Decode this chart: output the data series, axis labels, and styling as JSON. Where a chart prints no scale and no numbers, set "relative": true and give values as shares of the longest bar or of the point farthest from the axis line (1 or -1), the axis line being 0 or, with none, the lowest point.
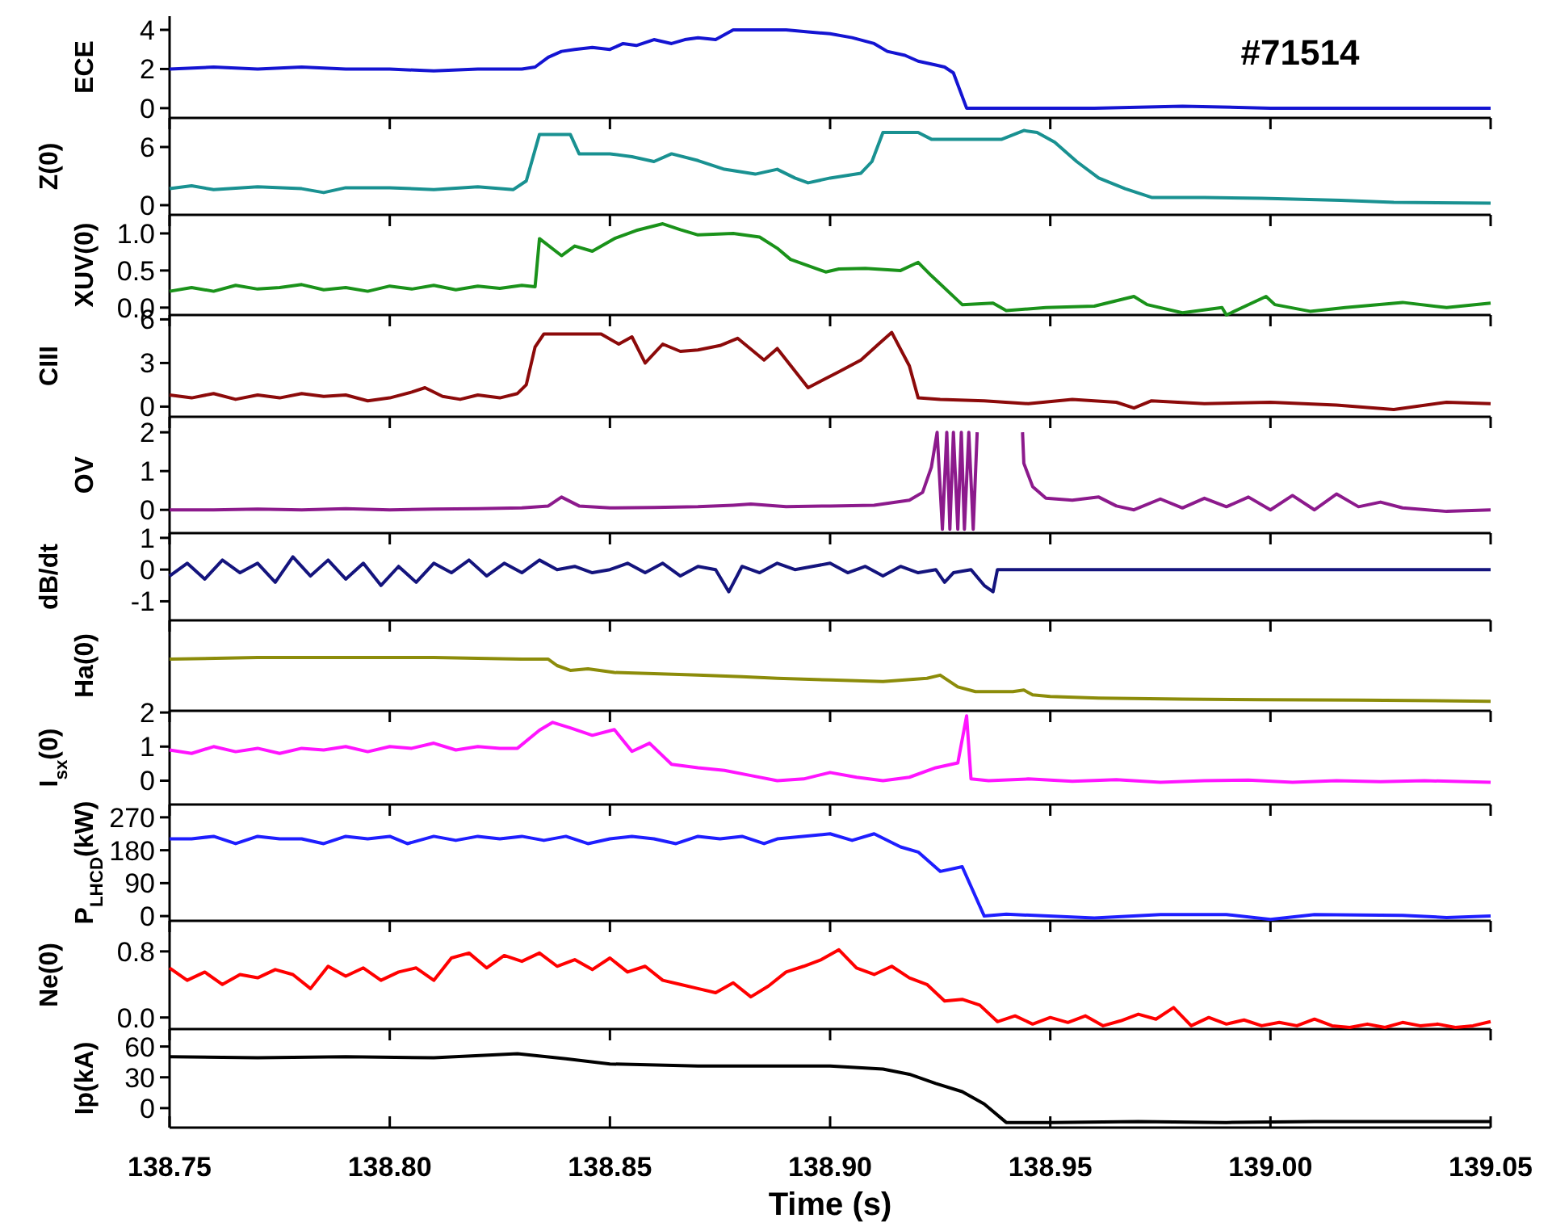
{
  "chart_data": [
    {
      "type": "line",
      "ylabel": "ECE",
      "color": "#1414d2",
      "annotations": [
        "#71514"
      ],
      "tick_labels": "y",
      "grid": false,
      "xlim": [
        138.75,
        139.05
      ],
      "xticks": [
        {
          "value": 138.75,
          "label": null
        },
        {
          "value": 138.8,
          "label": null
        },
        {
          "value": 138.85,
          "label": null
        },
        {
          "value": 138.9,
          "label": null
        },
        {
          "value": 138.95,
          "label": null
        },
        {
          "value": 139.0,
          "label": null
        },
        {
          "value": 139.05,
          "label": null
        }
      ],
      "ylim": [
        -0.5,
        4.7
      ],
      "yticks": [
        0,
        2,
        4
      ],
      "x": [
        138.75,
        138.76,
        138.77,
        138.78,
        138.79,
        138.8,
        138.81,
        138.82,
        138.83,
        138.833,
        138.836,
        138.839,
        138.842,
        138.846,
        138.85,
        138.853,
        138.856,
        138.86,
        138.864,
        138.867,
        138.87,
        138.874,
        138.878,
        138.885,
        138.89,
        138.895,
        138.9,
        138.905,
        138.91,
        138.913,
        138.917,
        138.92,
        138.924,
        138.926,
        138.928,
        138.931,
        138.94,
        138.96,
        138.98,
        139.0,
        139.02,
        139.05
      ],
      "values": [
        2.0,
        2.1,
        2.0,
        2.1,
        2.0,
        2.0,
        1.9,
        2.0,
        2.0,
        2.1,
        2.6,
        2.9,
        3.0,
        3.1,
        3.0,
        3.3,
        3.2,
        3.5,
        3.3,
        3.5,
        3.6,
        3.5,
        4.0,
        4.0,
        4.0,
        3.9,
        3.8,
        3.6,
        3.3,
        2.9,
        2.7,
        2.4,
        2.2,
        2.1,
        1.8,
        0.0,
        0.0,
        0.0,
        0.1,
        0.0,
        0.0,
        0.0
      ]
    },
    {
      "type": "line",
      "ylabel": "Z(0)",
      "color": "#199191",
      "tick_labels": "y",
      "grid": false,
      "xlim": [
        138.75,
        139.05
      ],
      "xticks": [
        {
          "value": 138.75,
          "label": null
        },
        {
          "value": 138.8,
          "label": null
        },
        {
          "value": 138.85,
          "label": null
        },
        {
          "value": 138.9,
          "label": null
        },
        {
          "value": 138.95,
          "label": null
        },
        {
          "value": 139.0,
          "label": null
        },
        {
          "value": 139.05,
          "label": null
        }
      ],
      "ylim": [
        -1,
        9
      ],
      "yticks": [
        0,
        6
      ],
      "x": [
        138.75,
        138.755,
        138.76,
        138.77,
        138.78,
        138.785,
        138.79,
        138.8,
        138.81,
        138.82,
        138.828,
        138.831,
        138.834,
        138.841,
        138.843,
        138.85,
        138.855,
        138.86,
        138.864,
        138.87,
        138.876,
        138.883,
        138.888,
        138.892,
        138.895,
        138.9,
        138.907,
        138.9095,
        138.912,
        138.92,
        138.923,
        138.939,
        138.944,
        138.947,
        138.951,
        138.956,
        138.961,
        138.967,
        138.973,
        138.985,
        138.998,
        139.016,
        139.028,
        139.05
      ],
      "values": [
        1.7,
        2.0,
        1.6,
        1.9,
        1.7,
        1.3,
        1.8,
        1.8,
        1.6,
        1.9,
        1.6,
        2.5,
        7.3,
        7.3,
        5.3,
        5.3,
        5.0,
        4.5,
        5.3,
        4.6,
        3.7,
        3.2,
        3.7,
        2.8,
        2.3,
        2.8,
        3.3,
        4.5,
        7.5,
        7.5,
        6.8,
        6.8,
        7.7,
        7.5,
        6.5,
        4.5,
        2.8,
        1.7,
        0.8,
        0.8,
        0.7,
        0.5,
        0.3,
        0.2
      ]
    },
    {
      "type": "line",
      "ylabel": "XUV(0)",
      "color": "#1a921a",
      "tick_labels": "y",
      "grid": false,
      "xlim": [
        138.75,
        139.05
      ],
      "xticks": [
        {
          "value": 138.75,
          "label": null
        },
        {
          "value": 138.8,
          "label": null
        },
        {
          "value": 138.85,
          "label": null
        },
        {
          "value": 138.9,
          "label": null
        },
        {
          "value": 138.95,
          "label": null
        },
        {
          "value": 139.0,
          "label": null
        },
        {
          "value": 139.05,
          "label": null
        }
      ],
      "ylim": [
        -0.1,
        1.25
      ],
      "yticks": [
        {
          "value": 0,
          "label": "0.0"
        },
        {
          "value": 0.5,
          "label": "0.5"
        },
        {
          "value": 1,
          "label": "1.0"
        }
      ],
      "x": [
        138.75,
        138.755,
        138.76,
        138.765,
        138.77,
        138.775,
        138.78,
        138.785,
        138.79,
        138.795,
        138.8,
        138.805,
        138.81,
        138.815,
        138.82,
        138.825,
        138.83,
        138.833,
        138.834,
        138.839,
        138.842,
        138.846,
        138.851,
        138.856,
        138.862,
        138.866,
        138.87,
        138.878,
        138.884,
        138.888,
        138.891,
        138.899,
        138.902,
        138.908,
        138.916,
        138.92,
        138.923,
        138.93,
        138.937,
        138.94,
        138.949,
        138.96,
        138.969,
        138.972,
        138.98,
        138.989,
        138.99,
        138.999,
        139.001,
        139.009,
        139.017,
        139.03,
        139.04,
        139.05
      ],
      "values": [
        0.22,
        0.27,
        0.22,
        0.3,
        0.25,
        0.27,
        0.31,
        0.24,
        0.27,
        0.22,
        0.29,
        0.25,
        0.3,
        0.24,
        0.29,
        0.26,
        0.3,
        0.28,
        0.93,
        0.7,
        0.83,
        0.76,
        0.93,
        1.04,
        1.13,
        1.05,
        0.98,
        1.0,
        0.95,
        0.8,
        0.65,
        0.48,
        0.52,
        0.53,
        0.5,
        0.61,
        0.43,
        0.04,
        0.06,
        -0.04,
        0.0,
        0.02,
        0.15,
        0.04,
        -0.07,
        0.0,
        -0.1,
        0.15,
        0.04,
        -0.05,
        0.0,
        0.07,
        0.0,
        0.06
      ]
    },
    {
      "type": "line",
      "ylabel": "CIII",
      "color": "#8c0a0a",
      "tick_labels": "y",
      "grid": false,
      "xlim": [
        138.75,
        139.05
      ],
      "xticks": [
        {
          "value": 138.75,
          "label": null
        },
        {
          "value": 138.8,
          "label": null
        },
        {
          "value": 138.85,
          "label": null
        },
        {
          "value": 138.9,
          "label": null
        },
        {
          "value": 138.95,
          "label": null
        },
        {
          "value": 139.0,
          "label": null
        },
        {
          "value": 139.05,
          "label": null
        }
      ],
      "ylim": [
        -0.7,
        6.3
      ],
      "yticks": [
        0,
        3,
        6
      ],
      "x": [
        138.75,
        138.755,
        138.76,
        138.765,
        138.77,
        138.775,
        138.78,
        138.785,
        138.79,
        138.795,
        138.8,
        138.805,
        138.808,
        138.812,
        138.816,
        138.82,
        138.825,
        138.829,
        138.831,
        138.833,
        138.835,
        138.848,
        138.852,
        138.855,
        138.858,
        138.862,
        138.866,
        138.87,
        138.875,
        138.879,
        138.885,
        138.888,
        138.895,
        138.902,
        138.907,
        138.911,
        138.914,
        138.918,
        138.92,
        138.925,
        138.935,
        138.945,
        138.955,
        138.965,
        138.969,
        138.973,
        138.985,
        139.0,
        139.015,
        139.028,
        139.04,
        139.05
      ],
      "values": [
        0.8,
        0.6,
        0.9,
        0.5,
        0.8,
        0.6,
        0.9,
        0.7,
        0.8,
        0.4,
        0.6,
        1.0,
        1.3,
        0.7,
        0.5,
        0.8,
        0.6,
        0.9,
        1.5,
        4.1,
        5.0,
        5.0,
        4.3,
        4.8,
        3.0,
        4.3,
        3.8,
        3.9,
        4.2,
        4.7,
        3.2,
        4.0,
        1.3,
        2.4,
        3.2,
        4.3,
        5.1,
        2.8,
        0.6,
        0.5,
        0.4,
        0.2,
        0.5,
        0.3,
        -0.1,
        0.4,
        0.2,
        0.3,
        0.1,
        -0.2,
        0.3,
        0.2
      ]
    },
    {
      "type": "line",
      "ylabel": "OV",
      "color": "#8c1a8c",
      "tick_labels": "y",
      "grid": false,
      "xlim": [
        138.75,
        139.05
      ],
      "xticks": [
        {
          "value": 138.75,
          "label": null
        },
        {
          "value": 138.8,
          "label": null
        },
        {
          "value": 138.85,
          "label": null
        },
        {
          "value": 138.9,
          "label": null
        },
        {
          "value": 138.95,
          "label": null
        },
        {
          "value": 139.0,
          "label": null
        },
        {
          "value": 139.05,
          "label": null
        }
      ],
      "ylim": [
        -0.6,
        2.4
      ],
      "yticks": [
        0,
        1,
        2
      ],
      "x": [
        138.75,
        138.76,
        138.77,
        138.78,
        138.79,
        138.8,
        138.81,
        138.82,
        138.83,
        138.836,
        138.839,
        138.843,
        138.85,
        138.86,
        138.87,
        138.878,
        138.882,
        138.89,
        138.9,
        138.91,
        138.918,
        138.921,
        138.923,
        138.9243,
        138.9255,
        138.9265,
        138.9272,
        138.928,
        138.929,
        138.9298,
        138.9305,
        138.9315,
        138.9325,
        138.9334,
        138.937,
        138.9437,
        138.944,
        138.946,
        138.949,
        138.955,
        138.961,
        138.965,
        138.969,
        138.975,
        138.98,
        138.985,
        138.99,
        138.995,
        139.0,
        139.005,
        139.01,
        139.015,
        139.02,
        139.025,
        139.03,
        139.04,
        139.05
      ],
      "values": [
        0.0,
        0.0,
        0.02,
        0.0,
        0.03,
        0.0,
        0.02,
        0.03,
        0.05,
        0.1,
        0.33,
        0.1,
        0.05,
        0.06,
        0.08,
        0.12,
        0.15,
        0.08,
        0.1,
        0.12,
        0.25,
        0.45,
        1.1,
        2.0,
        -0.5,
        2.0,
        -0.5,
        2.0,
        -0.5,
        2.0,
        -0.5,
        2.0,
        -0.5,
        2.0,
        null,
        2.0,
        1.2,
        0.6,
        0.3,
        0.25,
        0.33,
        0.1,
        0.0,
        0.28,
        0.05,
        0.3,
        0.08,
        0.33,
        0.0,
        0.37,
        0.0,
        0.41,
        0.08,
        0.2,
        0.05,
        -0.04,
        0.0
      ]
    },
    {
      "type": "line",
      "ylabel": "dB/dt",
      "color": "#14147d",
      "tick_labels": "y",
      "grid": false,
      "xlim": [
        138.75,
        139.05
      ],
      "xticks": [
        {
          "value": 138.75,
          "label": null
        },
        {
          "value": 138.8,
          "label": null
        },
        {
          "value": 138.85,
          "label": null
        },
        {
          "value": 138.9,
          "label": null
        },
        {
          "value": 138.95,
          "label": null
        },
        {
          "value": 139.0,
          "label": null
        },
        {
          "value": 139.05,
          "label": null
        }
      ],
      "ylim": [
        -1.6,
        1.15
      ],
      "yticks": [
        -1,
        0,
        1
      ],
      "x": [
        138.75,
        138.754,
        138.758,
        138.762,
        138.766,
        138.77,
        138.774,
        138.778,
        138.782,
        138.786,
        138.79,
        138.794,
        138.798,
        138.802,
        138.806,
        138.81,
        138.814,
        138.818,
        138.822,
        138.826,
        138.83,
        138.834,
        138.838,
        138.842,
        138.846,
        138.85,
        138.854,
        138.858,
        138.862,
        138.866,
        138.87,
        138.874,
        138.877,
        138.88,
        138.884,
        138.888,
        138.892,
        138.896,
        138.9,
        138.904,
        138.908,
        138.912,
        138.916,
        138.92,
        138.924,
        138.926,
        138.928,
        138.932,
        138.935,
        138.937,
        138.938,
        138.945,
        138.96,
        138.98,
        139.0,
        139.02,
        139.04,
        139.05
      ],
      "values": [
        -0.2,
        0.2,
        -0.3,
        0.3,
        -0.1,
        0.2,
        -0.4,
        0.4,
        -0.2,
        0.3,
        -0.3,
        0.2,
        -0.5,
        0.1,
        -0.4,
        0.2,
        -0.1,
        0.3,
        -0.2,
        0.2,
        -0.1,
        0.3,
        0.0,
        0.1,
        -0.1,
        0.0,
        0.2,
        -0.1,
        0.2,
        -0.2,
        0.1,
        0.0,
        -0.7,
        0.1,
        -0.1,
        0.2,
        0.0,
        0.1,
        0.2,
        -0.1,
        0.1,
        -0.2,
        0.1,
        -0.1,
        0.0,
        -0.4,
        -0.1,
        0.0,
        -0.5,
        -0.7,
        0.0,
        0.0,
        0.0,
        0.0,
        0.0,
        0.0,
        0.0,
        0.0
      ]
    },
    {
      "type": "line",
      "ylabel": "Ha(0)",
      "color": "#8c8c0a",
      "relative": true,
      "tick_labels": false,
      "grid": false,
      "xlim": [
        138.75,
        139.05
      ],
      "xticks": [
        {
          "value": 138.75,
          "label": null
        },
        {
          "value": 138.8,
          "label": null
        },
        {
          "value": 138.85,
          "label": null
        },
        {
          "value": 138.9,
          "label": null
        },
        {
          "value": 138.95,
          "label": null
        },
        {
          "value": 139.0,
          "label": null
        },
        {
          "value": 139.05,
          "label": null
        }
      ],
      "x": [
        138.75,
        138.77,
        138.79,
        138.81,
        138.83,
        138.836,
        138.838,
        138.841,
        138.845,
        138.851,
        138.86,
        138.87,
        138.88,
        138.888,
        138.9,
        138.912,
        138.922,
        138.925,
        138.929,
        138.933,
        138.9415,
        138.944,
        138.946,
        138.95,
        138.961,
        138.98,
        138.998,
        139.02,
        139.05
      ],
      "values": [
        0.97,
        1.0,
        1.0,
        1.0,
        0.97,
        0.97,
        0.85,
        0.76,
        0.79,
        0.72,
        0.7,
        0.67,
        0.64,
        0.61,
        0.58,
        0.55,
        0.61,
        0.67,
        0.45,
        0.36,
        0.36,
        0.39,
        0.3,
        0.27,
        0.24,
        0.22,
        0.21,
        0.2,
        0.18
      ]
    },
    {
      "type": "line",
      "ylabel": "I$_{sx}$(0)",
      "color": "#ff14ff",
      "tick_labels": "y",
      "grid": false,
      "xlim": [
        138.75,
        139.05
      ],
      "xticks": [
        {
          "value": 138.75,
          "label": null
        },
        {
          "value": 138.8,
          "label": null
        },
        {
          "value": 138.85,
          "label": null
        },
        {
          "value": 138.9,
          "label": null
        },
        {
          "value": 138.95,
          "label": null
        },
        {
          "value": 139.0,
          "label": null
        },
        {
          "value": 139.05,
          "label": null
        }
      ],
      "ylim": [
        -0.7,
        2.05
      ],
      "yticks": [
        0,
        1,
        2
      ],
      "x": [
        138.75,
        138.755,
        138.76,
        138.765,
        138.77,
        138.775,
        138.78,
        138.785,
        138.79,
        138.795,
        138.8,
        138.805,
        138.81,
        138.815,
        138.82,
        138.825,
        138.829,
        138.834,
        138.837,
        138.841,
        138.846,
        138.851,
        138.855,
        138.859,
        138.864,
        138.87,
        138.876,
        138.882,
        138.888,
        138.894,
        138.9,
        138.906,
        138.912,
        138.918,
        138.924,
        138.929,
        138.931,
        138.932,
        138.936,
        138.945,
        138.955,
        138.965,
        138.975,
        138.985,
        138.995,
        139.005,
        139.015,
        139.025,
        139.035,
        139.05
      ],
      "values": [
        0.9,
        0.8,
        1.0,
        0.85,
        0.95,
        0.8,
        0.95,
        0.9,
        1.0,
        0.85,
        1.0,
        0.95,
        1.1,
        0.9,
        1.0,
        0.95,
        0.95,
        1.48,
        1.71,
        1.55,
        1.33,
        1.5,
        0.86,
        1.1,
        0.48,
        0.38,
        0.3,
        0.15,
        0.0,
        0.05,
        0.24,
        0.1,
        0.0,
        0.1,
        0.38,
        0.52,
        1.9,
        0.05,
        0.0,
        0.05,
        -0.02,
        0.03,
        -0.05,
        0.0,
        0.02,
        -0.05,
        0.0,
        -0.03,
        0.0,
        -0.05
      ]
    },
    {
      "type": "line",
      "ylabel": "P$_{LHCD}$(kW)",
      "color": "#1e1eff",
      "tick_labels": "y",
      "grid": false,
      "xlim": [
        138.75,
        139.05
      ],
      "xticks": [
        {
          "value": 138.75,
          "label": null
        },
        {
          "value": 138.8,
          "label": null
        },
        {
          "value": 138.85,
          "label": null
        },
        {
          "value": 138.9,
          "label": null
        },
        {
          "value": 138.95,
          "label": null
        },
        {
          "value": 139.0,
          "label": null
        },
        {
          "value": 139.05,
          "label": null
        }
      ],
      "ylim": [
        -13,
        305
      ],
      "yticks": [
        0,
        90,
        180,
        270
      ],
      "x": [
        138.75,
        138.755,
        138.76,
        138.765,
        138.77,
        138.775,
        138.78,
        138.785,
        138.79,
        138.795,
        138.8,
        138.804,
        138.81,
        138.815,
        138.82,
        138.825,
        138.83,
        138.835,
        138.84,
        138.845,
        138.85,
        138.855,
        138.86,
        138.865,
        138.87,
        138.875,
        138.88,
        138.885,
        138.888,
        138.9,
        138.905,
        138.91,
        138.916,
        138.92,
        138.925,
        138.93,
        138.935,
        138.94,
        138.96,
        138.975,
        138.99,
        139.0,
        139.01,
        139.03,
        139.04,
        139.05
      ],
      "values": [
        211,
        211,
        218,
        198,
        218,
        211,
        211,
        198,
        218,
        211,
        218,
        198,
        218,
        207,
        218,
        211,
        218,
        207,
        218,
        198,
        211,
        218,
        211,
        198,
        218,
        211,
        218,
        198,
        211,
        225,
        207,
        225,
        189,
        175,
        122,
        135,
        0,
        5,
        -5,
        4,
        4,
        -9,
        4,
        2,
        -4,
        0
      ]
    },
    {
      "type": "line",
      "ylabel": "Ne(0)",
      "color": "#ff0000",
      "tick_labels": "y",
      "grid": false,
      "xlim": [
        138.75,
        139.05
      ],
      "xticks": [
        {
          "value": 138.75,
          "label": null
        },
        {
          "value": 138.8,
          "label": null
        },
        {
          "value": 138.85,
          "label": null
        },
        {
          "value": 138.9,
          "label": null
        },
        {
          "value": 138.95,
          "label": null
        },
        {
          "value": 139.0,
          "label": null
        },
        {
          "value": 139.05,
          "label": null
        }
      ],
      "ylim": [
        -0.14,
        1.17
      ],
      "yticks": [
        {
          "value": 0,
          "label": "0.0"
        },
        {
          "value": 0.8,
          "label": "0.8"
        }
      ],
      "x": [
        138.75,
        138.754,
        138.758,
        138.762,
        138.766,
        138.77,
        138.774,
        138.778,
        138.782,
        138.786,
        138.79,
        138.794,
        138.798,
        138.802,
        138.806,
        138.81,
        138.814,
        138.818,
        138.822,
        138.826,
        138.83,
        138.834,
        138.838,
        138.842,
        138.846,
        138.85,
        138.854,
        138.858,
        138.862,
        138.866,
        138.87,
        138.874,
        138.878,
        138.882,
        138.886,
        138.89,
        138.894,
        138.898,
        138.902,
        138.906,
        138.91,
        138.914,
        138.918,
        138.922,
        138.926,
        138.93,
        138.934,
        138.938,
        138.942,
        138.946,
        138.95,
        138.954,
        138.958,
        138.962,
        138.966,
        138.97,
        138.974,
        138.978,
        138.982,
        138.986,
        138.99,
        138.994,
        138.998,
        139.002,
        139.006,
        139.01,
        139.014,
        139.018,
        139.022,
        139.026,
        139.03,
        139.034,
        139.038,
        139.042,
        139.046,
        139.05
      ],
      "values": [
        0.6,
        0.45,
        0.55,
        0.4,
        0.52,
        0.48,
        0.58,
        0.52,
        0.35,
        0.62,
        0.5,
        0.6,
        0.45,
        0.55,
        0.6,
        0.45,
        0.72,
        0.78,
        0.6,
        0.75,
        0.68,
        0.78,
        0.62,
        0.7,
        0.58,
        0.72,
        0.55,
        0.62,
        0.45,
        0.4,
        0.35,
        0.3,
        0.42,
        0.25,
        0.38,
        0.55,
        0.62,
        0.7,
        0.82,
        0.6,
        0.52,
        0.62,
        0.48,
        0.4,
        0.2,
        0.22,
        0.15,
        -0.05,
        0.02,
        -0.08,
        0.0,
        -0.06,
        0.02,
        -0.1,
        -0.04,
        0.04,
        -0.02,
        0.12,
        -0.1,
        0.0,
        -0.08,
        -0.03,
        -0.1,
        -0.06,
        -0.1,
        -0.02,
        -0.1,
        -0.12,
        -0.08,
        -0.12,
        -0.06,
        -0.1,
        -0.08,
        -0.12,
        -0.1,
        -0.05
      ]
    },
    {
      "type": "line",
      "ylabel": "Ip(kA)",
      "xlabel": "Time (s)",
      "color": "#000000",
      "grid": false,
      "xlim": [
        138.75,
        139.05
      ],
      "xticks": [
        {
          "value": 138.75,
          "label": "138.75"
        },
        {
          "value": 138.8,
          "label": "138.80"
        },
        {
          "value": 138.85,
          "label": "138.85"
        },
        {
          "value": 138.9,
          "label": "138.90"
        },
        {
          "value": 138.95,
          "label": "138.95"
        },
        {
          "value": 139.0,
          "label": "139.00"
        },
        {
          "value": 139.05,
          "label": "139.05"
        }
      ],
      "ylim": [
        -19,
        77
      ],
      "yticks": [
        0,
        30,
        60
      ],
      "x": [
        138.75,
        138.77,
        138.79,
        138.81,
        138.829,
        138.84,
        138.85,
        138.87,
        138.888,
        138.9,
        138.912,
        138.918,
        138.924,
        138.93,
        138.935,
        138.94,
        138.95,
        138.97,
        138.99,
        139.01,
        139.03,
        139.05
      ],
      "values": [
        50,
        49,
        50,
        49,
        53,
        48,
        43,
        41,
        41,
        41,
        38,
        33,
        24,
        16,
        4,
        -14,
        -14,
        -13,
        -14,
        -13,
        -13,
        -13
      ]
    }
  ]
}
